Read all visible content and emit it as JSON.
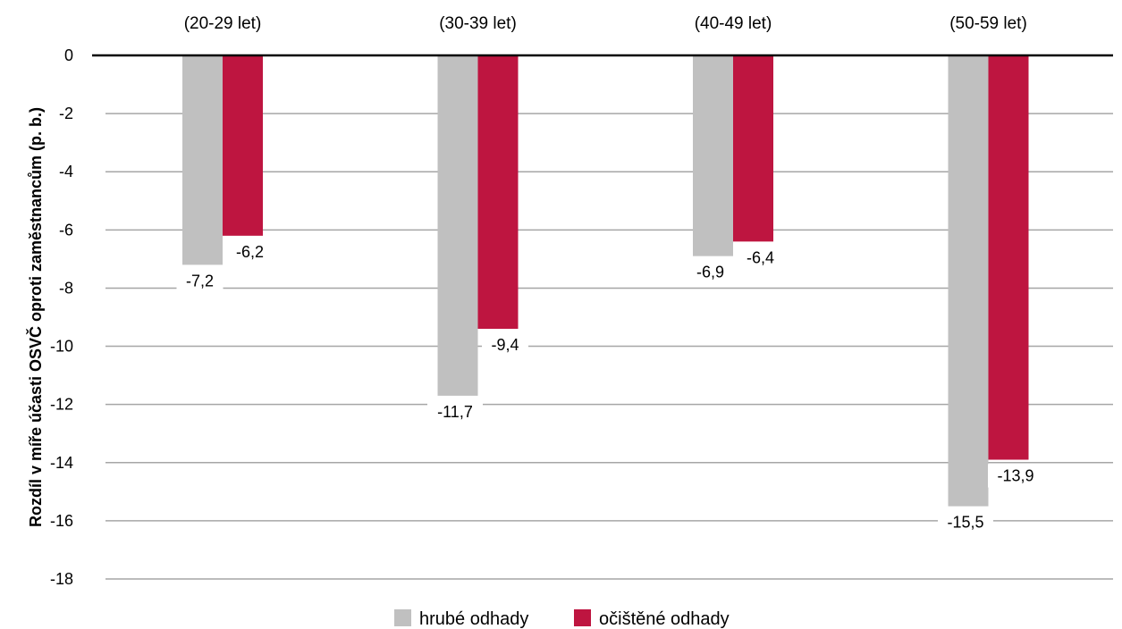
{
  "chart_data": {
    "type": "bar",
    "categories": [
      "(20-29 let)",
      "(30-39 let)",
      "(40-49 let)",
      "(50-59 let)"
    ],
    "series": [
      {
        "name": "hrubé odhady",
        "values": [
          -7.2,
          -11.7,
          -6.9,
          -15.5
        ],
        "labels": [
          "-7,2",
          "-11,7",
          "-6,9",
          "-15,5"
        ],
        "color": "#c0c0c0"
      },
      {
        "name": "očištěné odhady",
        "values": [
          -6.2,
          -9.4,
          -6.4,
          -13.9
        ],
        "labels": [
          "-6,2",
          "-9,4",
          "-6,4",
          "-13,9"
        ],
        "color": "#be1540"
      }
    ],
    "ylabel": "Rozdíl v míře účasti OSVČ oproti zaměstnancům (p. b.)",
    "ylim": [
      -18,
      0
    ],
    "yticks": [
      0,
      -2,
      -4,
      -6,
      -8,
      -10,
      -12,
      -14,
      -16,
      -18
    ],
    "ytick_labels": [
      "0",
      "-2",
      "-4",
      "-6",
      "-8",
      "-10",
      "-12",
      "-14",
      "-16",
      "-18"
    ],
    "category_axis_position": "top",
    "grid": true,
    "legend_position": "bottom-center"
  }
}
